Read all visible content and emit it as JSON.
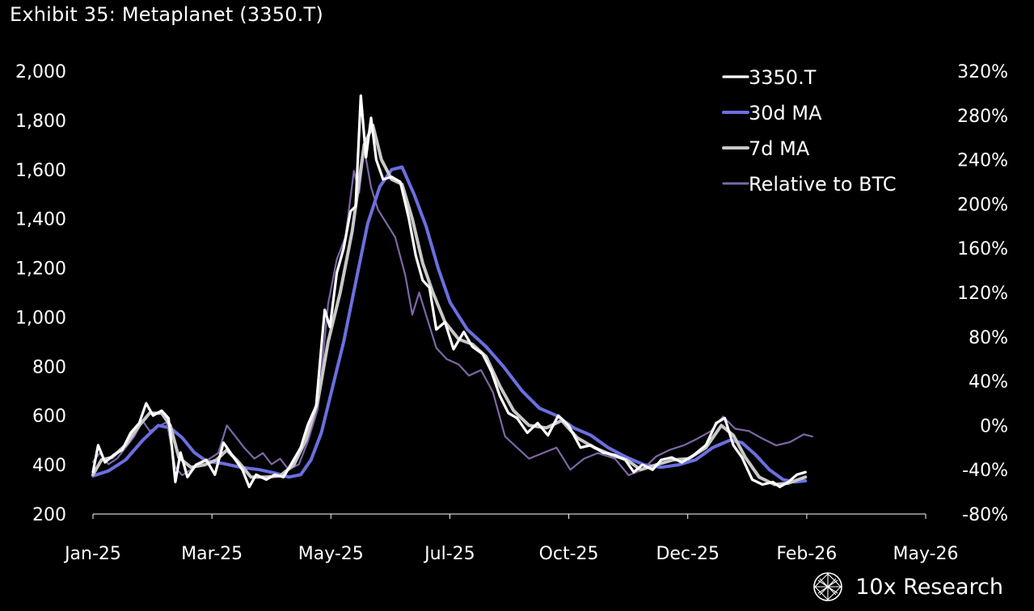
{
  "title": "Exhibit 35: Metaplanet (3350.T)",
  "brand": "10x Research",
  "chart_data": {
    "type": "line",
    "title": "Exhibit 35: Metaplanet (3350.T)",
    "x_start": "2025-01-01",
    "x_end": "2026-05-01",
    "x_ticks": [
      "Jan-25",
      "Mar-25",
      "May-25",
      "Jul-25",
      "Oct-25",
      "Dec-25",
      "Feb-26",
      "May-26"
    ],
    "y_left": {
      "min": 200,
      "max": 2000,
      "ticks": [
        "2,000",
        "1,800",
        "1,600",
        "1,400",
        "1,200",
        "1,000",
        "800",
        "600",
        "400",
        "200"
      ]
    },
    "y_right": {
      "min": -80,
      "max": 320,
      "ticks": [
        "320%",
        "280%",
        "240%",
        "200%",
        "160%",
        "120%",
        "80%",
        "40%",
        "0%",
        "-40%",
        "-80%"
      ]
    },
    "legend_position": "top-right",
    "series": [
      {
        "name": "3350.T",
        "axis": "left",
        "color": "#ffffff",
        "width": 3.2,
        "points": [
          [
            "2025-01-01",
            370
          ],
          [
            "2025-01-04",
            480
          ],
          [
            "2025-01-08",
            410
          ],
          [
            "2025-01-13",
            440
          ],
          [
            "2025-01-18",
            460
          ],
          [
            "2025-01-23",
            530
          ],
          [
            "2025-01-28",
            570
          ],
          [
            "2025-02-01",
            650
          ],
          [
            "2025-02-05",
            600
          ],
          [
            "2025-02-10",
            620
          ],
          [
            "2025-02-14",
            590
          ],
          [
            "2025-02-16",
            470
          ],
          [
            "2025-02-18",
            330
          ],
          [
            "2025-02-21",
            450
          ],
          [
            "2025-02-25",
            350
          ],
          [
            "2025-03-02",
            400
          ],
          [
            "2025-03-08",
            420
          ],
          [
            "2025-03-13",
            360
          ],
          [
            "2025-03-18",
            490
          ],
          [
            "2025-03-23",
            440
          ],
          [
            "2025-03-29",
            380
          ],
          [
            "2025-04-02",
            310
          ],
          [
            "2025-04-06",
            360
          ],
          [
            "2025-04-12",
            340
          ],
          [
            "2025-04-17",
            360
          ],
          [
            "2025-04-22",
            350
          ],
          [
            "2025-04-27",
            410
          ],
          [
            "2025-05-02",
            470
          ],
          [
            "2025-05-06",
            560
          ],
          [
            "2025-05-11",
            640
          ],
          [
            "2025-05-14",
            880
          ],
          [
            "2025-05-16",
            1030
          ],
          [
            "2025-05-19",
            960
          ],
          [
            "2025-05-23",
            1180
          ],
          [
            "2025-05-27",
            1280
          ],
          [
            "2025-05-31",
            1430
          ],
          [
            "2025-06-03",
            1450
          ],
          [
            "2025-06-06",
            1900
          ],
          [
            "2025-06-09",
            1650
          ],
          [
            "2025-06-12",
            1810
          ],
          [
            "2025-06-15",
            1640
          ],
          [
            "2025-06-19",
            1560
          ],
          [
            "2025-06-24",
            1570
          ],
          [
            "2025-06-29",
            1550
          ],
          [
            "2025-07-04",
            1400
          ],
          [
            "2025-07-08",
            1250
          ],
          [
            "2025-07-12",
            1150
          ],
          [
            "2025-07-16",
            1120
          ],
          [
            "2025-07-20",
            950
          ],
          [
            "2025-07-25",
            980
          ],
          [
            "2025-07-30",
            870
          ],
          [
            "2025-08-05",
            940
          ],
          [
            "2025-08-10",
            880
          ],
          [
            "2025-08-16",
            850
          ],
          [
            "2025-08-21",
            780
          ],
          [
            "2025-08-26",
            680
          ],
          [
            "2025-08-31",
            610
          ],
          [
            "2025-09-05",
            590
          ],
          [
            "2025-09-11",
            530
          ],
          [
            "2025-09-17",
            570
          ],
          [
            "2025-09-23",
            520
          ],
          [
            "2025-09-29",
            600
          ],
          [
            "2025-10-05",
            560
          ],
          [
            "2025-10-12",
            470
          ],
          [
            "2025-10-18",
            480
          ],
          [
            "2025-10-25",
            450
          ],
          [
            "2025-11-01",
            440
          ],
          [
            "2025-11-07",
            420
          ],
          [
            "2025-11-12",
            370
          ],
          [
            "2025-11-17",
            400
          ],
          [
            "2025-11-23",
            380
          ],
          [
            "2025-11-28",
            420
          ],
          [
            "2025-12-04",
            430
          ],
          [
            "2025-12-10",
            410
          ],
          [
            "2025-12-17",
            440
          ],
          [
            "2025-12-24",
            480
          ],
          [
            "2025-12-30",
            570
          ],
          [
            "2026-01-04",
            590
          ],
          [
            "2026-01-09",
            480
          ],
          [
            "2026-01-14",
            430
          ],
          [
            "2026-01-20",
            340
          ],
          [
            "2026-01-26",
            320
          ],
          [
            "2026-02-01",
            330
          ],
          [
            "2026-02-05",
            310
          ],
          [
            "2026-02-10",
            330
          ],
          [
            "2026-02-15",
            360
          ],
          [
            "2026-02-20",
            370
          ]
        ]
      },
      {
        "name": "30d MA",
        "axis": "left",
        "color": "#6b6fe0",
        "width": 4,
        "points": [
          [
            "2025-01-01",
            355
          ],
          [
            "2025-01-10",
            375
          ],
          [
            "2025-01-20",
            420
          ],
          [
            "2025-01-30",
            500
          ],
          [
            "2025-02-08",
            560
          ],
          [
            "2025-02-15",
            550
          ],
          [
            "2025-02-22",
            510
          ],
          [
            "2025-03-01",
            450
          ],
          [
            "2025-03-08",
            415
          ],
          [
            "2025-03-18",
            405
          ],
          [
            "2025-03-28",
            390
          ],
          [
            "2025-04-08",
            380
          ],
          [
            "2025-04-18",
            365
          ],
          [
            "2025-04-25",
            350
          ],
          [
            "2025-05-02",
            360
          ],
          [
            "2025-05-08",
            420
          ],
          [
            "2025-05-14",
            530
          ],
          [
            "2025-05-20",
            700
          ],
          [
            "2025-05-27",
            900
          ],
          [
            "2025-06-03",
            1140
          ],
          [
            "2025-06-10",
            1380
          ],
          [
            "2025-06-17",
            1530
          ],
          [
            "2025-06-24",
            1600
          ],
          [
            "2025-06-30",
            1610
          ],
          [
            "2025-07-07",
            1500
          ],
          [
            "2025-07-14",
            1370
          ],
          [
            "2025-07-21",
            1200
          ],
          [
            "2025-07-28",
            1060
          ],
          [
            "2025-08-07",
            950
          ],
          [
            "2025-08-18",
            880
          ],
          [
            "2025-08-28",
            800
          ],
          [
            "2025-09-08",
            700
          ],
          [
            "2025-09-18",
            630
          ],
          [
            "2025-09-28",
            600
          ],
          [
            "2025-10-08",
            550
          ],
          [
            "2025-10-18",
            520
          ],
          [
            "2025-10-28",
            470
          ],
          [
            "2025-11-08",
            430
          ],
          [
            "2025-11-18",
            400
          ],
          [
            "2025-11-28",
            390
          ],
          [
            "2025-12-08",
            400
          ],
          [
            "2025-12-18",
            420
          ],
          [
            "2025-12-28",
            470
          ],
          [
            "2026-01-07",
            500
          ],
          [
            "2026-01-14",
            490
          ],
          [
            "2026-01-22",
            440
          ],
          [
            "2026-01-30",
            380
          ],
          [
            "2026-02-07",
            340
          ],
          [
            "2026-02-14",
            330
          ],
          [
            "2026-02-20",
            335
          ]
        ]
      },
      {
        "name": "7d MA",
        "axis": "left",
        "color": "#c8c8c8",
        "width": 4,
        "points": [
          [
            "2025-01-01",
            360
          ],
          [
            "2025-01-06",
            420
          ],
          [
            "2025-01-12",
            430
          ],
          [
            "2025-01-20",
            480
          ],
          [
            "2025-01-28",
            560
          ],
          [
            "2025-02-03",
            610
          ],
          [
            "2025-02-10",
            610
          ],
          [
            "2025-02-15",
            560
          ],
          [
            "2025-02-20",
            430
          ],
          [
            "2025-02-27",
            390
          ],
          [
            "2025-03-07",
            400
          ],
          [
            "2025-03-14",
            420
          ],
          [
            "2025-03-20",
            460
          ],
          [
            "2025-03-27",
            410
          ],
          [
            "2025-04-03",
            350
          ],
          [
            "2025-04-12",
            350
          ],
          [
            "2025-04-20",
            355
          ],
          [
            "2025-04-28",
            400
          ],
          [
            "2025-05-05",
            500
          ],
          [
            "2025-05-12",
            660
          ],
          [
            "2025-05-18",
            900
          ],
          [
            "2025-05-25",
            1100
          ],
          [
            "2025-06-01",
            1350
          ],
          [
            "2025-06-08",
            1700
          ],
          [
            "2025-06-13",
            1780
          ],
          [
            "2025-06-18",
            1640
          ],
          [
            "2025-06-24",
            1560
          ],
          [
            "2025-06-30",
            1540
          ],
          [
            "2025-07-06",
            1400
          ],
          [
            "2025-07-12",
            1220
          ],
          [
            "2025-07-18",
            1100
          ],
          [
            "2025-07-25",
            980
          ],
          [
            "2025-08-02",
            910
          ],
          [
            "2025-08-10",
            890
          ],
          [
            "2025-08-18",
            840
          ],
          [
            "2025-08-26",
            720
          ],
          [
            "2025-09-03",
            620
          ],
          [
            "2025-09-12",
            560
          ],
          [
            "2025-09-22",
            550
          ],
          [
            "2025-10-01",
            580
          ],
          [
            "2025-10-10",
            510
          ],
          [
            "2025-10-20",
            470
          ],
          [
            "2025-10-30",
            440
          ],
          [
            "2025-11-08",
            420
          ],
          [
            "2025-11-16",
            380
          ],
          [
            "2025-11-25",
            400
          ],
          [
            "2025-12-05",
            420
          ],
          [
            "2025-12-14",
            425
          ],
          [
            "2025-12-24",
            470
          ],
          [
            "2026-01-02",
            560
          ],
          [
            "2026-01-09",
            520
          ],
          [
            "2026-01-16",
            430
          ],
          [
            "2026-01-24",
            350
          ],
          [
            "2026-02-02",
            320
          ],
          [
            "2026-02-10",
            325
          ],
          [
            "2026-02-20",
            350
          ]
        ]
      },
      {
        "name": "Relative to BTC",
        "axis": "right",
        "color": "#7d67a6",
        "width": 2.2,
        "points": [
          [
            "2025-01-01",
            -33
          ],
          [
            "2025-01-05",
            -25
          ],
          [
            "2025-01-10",
            -35
          ],
          [
            "2025-01-15",
            -30
          ],
          [
            "2025-01-20",
            -20
          ],
          [
            "2025-01-25",
            -10
          ],
          [
            "2025-01-30",
            4
          ],
          [
            "2025-02-03",
            -5
          ],
          [
            "2025-02-08",
            -1
          ],
          [
            "2025-02-13",
            3
          ],
          [
            "2025-02-18",
            -38
          ],
          [
            "2025-02-22",
            -45
          ],
          [
            "2025-02-27",
            -40
          ],
          [
            "2025-03-04",
            -35
          ],
          [
            "2025-03-10",
            -30
          ],
          [
            "2025-03-15",
            -25
          ],
          [
            "2025-03-20",
            0
          ],
          [
            "2025-03-25",
            -10
          ],
          [
            "2025-03-30",
            -20
          ],
          [
            "2025-04-05",
            -30
          ],
          [
            "2025-04-10",
            -25
          ],
          [
            "2025-04-15",
            -35
          ],
          [
            "2025-04-20",
            -30
          ],
          [
            "2025-04-25",
            -40
          ],
          [
            "2025-05-01",
            -35
          ],
          [
            "2025-05-06",
            -15
          ],
          [
            "2025-05-12",
            15
          ],
          [
            "2025-05-18",
            110
          ],
          [
            "2025-05-23",
            150
          ],
          [
            "2025-05-28",
            170
          ],
          [
            "2025-06-02",
            230
          ],
          [
            "2025-06-05",
            210
          ],
          [
            "2025-06-08",
            250
          ],
          [
            "2025-06-12",
            215
          ],
          [
            "2025-06-16",
            195
          ],
          [
            "2025-06-20",
            185
          ],
          [
            "2025-06-26",
            170
          ],
          [
            "2025-07-02",
            135
          ],
          [
            "2025-07-06",
            100
          ],
          [
            "2025-07-10",
            120
          ],
          [
            "2025-07-15",
            95
          ],
          [
            "2025-07-20",
            70
          ],
          [
            "2025-07-26",
            60
          ],
          [
            "2025-08-02",
            55
          ],
          [
            "2025-08-08",
            45
          ],
          [
            "2025-08-15",
            50
          ],
          [
            "2025-08-22",
            30
          ],
          [
            "2025-08-29",
            -10
          ],
          [
            "2025-09-05",
            -20
          ],
          [
            "2025-09-12",
            -30
          ],
          [
            "2025-09-20",
            -25
          ],
          [
            "2025-09-28",
            -20
          ],
          [
            "2025-10-06",
            -40
          ],
          [
            "2025-10-14",
            -30
          ],
          [
            "2025-10-22",
            -25
          ],
          [
            "2025-11-01",
            -30
          ],
          [
            "2025-11-09",
            -45
          ],
          [
            "2025-11-17",
            -40
          ],
          [
            "2025-11-25",
            -28
          ],
          [
            "2025-12-03",
            -22
          ],
          [
            "2025-12-11",
            -18
          ],
          [
            "2025-12-19",
            -12
          ],
          [
            "2025-12-27",
            -5
          ],
          [
            "2026-01-03",
            8
          ],
          [
            "2026-01-10",
            -3
          ],
          [
            "2026-01-18",
            -5
          ],
          [
            "2026-01-26",
            -12
          ],
          [
            "2026-02-03",
            -18
          ],
          [
            "2026-02-11",
            -15
          ],
          [
            "2026-02-19",
            -8
          ],
          [
            "2026-02-24",
            -10
          ]
        ]
      }
    ]
  }
}
